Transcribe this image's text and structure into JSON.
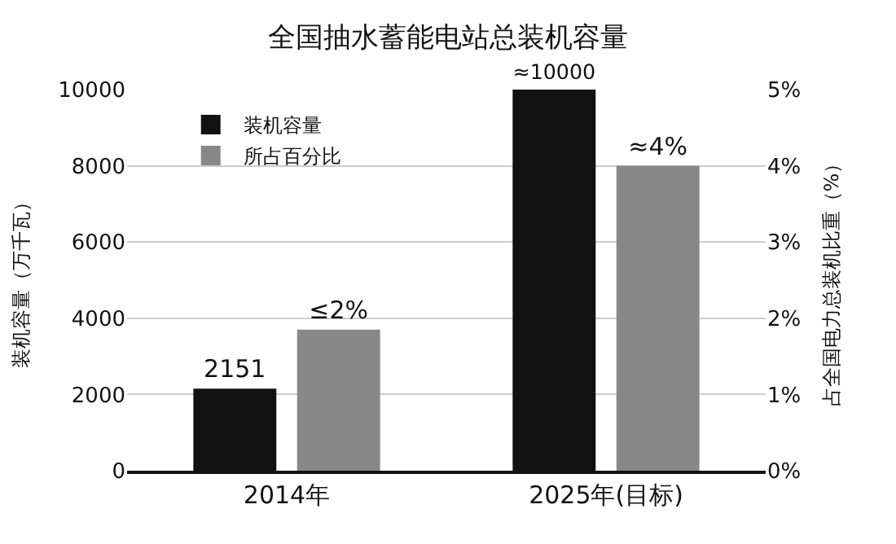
{
  "chart_data": {
    "type": "bar",
    "title": "全国抽水蓄能电站总装机容量",
    "ylabel": "装机容量（万千瓦）",
    "y2label": "占全国电力总装机比重（%）",
    "categories": [
      "2014年",
      "2025年(目标)"
    ],
    "series": [
      {
        "name": "装机容量",
        "color": "#111111",
        "values": [
          2151,
          10000
        ],
        "value_labels": [
          "2151",
          "≈10000"
        ]
      },
      {
        "name": "所占百分比",
        "color": "#888888",
        "values": [
          1.85,
          4
        ],
        "axis": "y2",
        "value_labels": [
          "≤2%",
          "≈4%"
        ]
      }
    ],
    "ylim": [
      0,
      10000
    ],
    "yticks": [
      0,
      2000,
      4000,
      6000,
      8000,
      10000
    ],
    "y2lim": [
      0,
      5
    ],
    "y2ticks": [
      {
        "value": 0,
        "label": "0%"
      },
      {
        "value": 1,
        "label": "1%"
      },
      {
        "value": 2,
        "label": "2%"
      },
      {
        "value": 3,
        "label": "3%"
      },
      {
        "value": 4,
        "label": "4%"
      },
      {
        "value": 5,
        "label": "5%"
      }
    ],
    "grid": "y",
    "legend": "top left"
  }
}
